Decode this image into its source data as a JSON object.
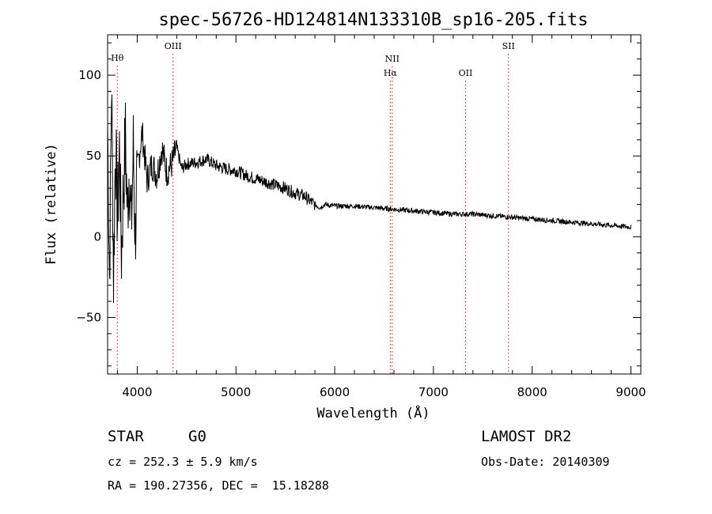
{
  "chart_data": {
    "type": "line",
    "title": "spec-56726-HD124814N133310B_sp16-205.fits",
    "xlabel": "Wavelength (Å)",
    "ylabel": "Flux (relative)",
    "xlim": [
      3700,
      9100
    ],
    "ylim": [
      -85,
      125
    ],
    "xticks": [
      4000,
      5000,
      6000,
      7000,
      8000,
      9000
    ],
    "yticks": [
      -50,
      0,
      50,
      100
    ],
    "grid": false,
    "line_color": "#000000",
    "marker_color": "#ff0000",
    "emission_lines": [
      {
        "label": "Hθ",
        "x": 3798,
        "style": "dotted"
      },
      {
        "label": "OIII",
        "x": 4363,
        "style": "dotted"
      },
      {
        "label": "NII",
        "x": 6583,
        "style": "dotted"
      },
      {
        "label": "Hα",
        "x": 6563,
        "style": "dotted"
      },
      {
        "label": "OII",
        "x": 7325,
        "style": "dotted"
      },
      {
        "label": "SII",
        "x": 7760,
        "style": "dotted"
      }
    ],
    "series": [
      {
        "x": [
          3700,
          3720,
          3740,
          3760,
          3780,
          3800,
          3820,
          3840,
          3860,
          3880,
          3900,
          3920,
          3940,
          3960,
          3980,
          4000,
          4050,
          4100,
          4150,
          4200,
          4250,
          4300,
          4350,
          4400,
          4450,
          4500,
          4600,
          4700,
          4800,
          4900,
          5000,
          5100,
          5200,
          5300,
          5400,
          5500,
          5600,
          5700,
          5750,
          5800,
          5850,
          5900,
          6000,
          6200,
          6400,
          6600,
          6800,
          7000,
          7200,
          7400,
          7600,
          7800,
          8000,
          8200,
          8400,
          8600,
          8800,
          9000
        ],
        "y": [
          70,
          -25,
          95,
          -25,
          60,
          10,
          55,
          -10,
          30,
          60,
          15,
          45,
          5,
          55,
          0,
          40,
          65,
          35,
          45,
          38,
          55,
          40,
          45,
          55,
          42,
          45,
          46,
          48,
          44,
          42,
          41,
          38,
          36,
          34,
          32,
          30,
          27,
          25,
          22,
          20,
          18,
          20,
          19,
          19,
          18,
          17,
          16,
          15,
          14,
          14,
          13,
          12,
          11,
          10,
          9,
          8,
          7,
          6
        ]
      }
    ]
  },
  "info": {
    "object_type": "STAR",
    "spectral_class": "G0",
    "survey": "LAMOST DR2",
    "redshift": "cz = 252.3 ± 5.9 km/s",
    "obs_date": "Obs-Date: 20140309",
    "coords": "RA = 190.27356, DEC =  15.18288"
  }
}
